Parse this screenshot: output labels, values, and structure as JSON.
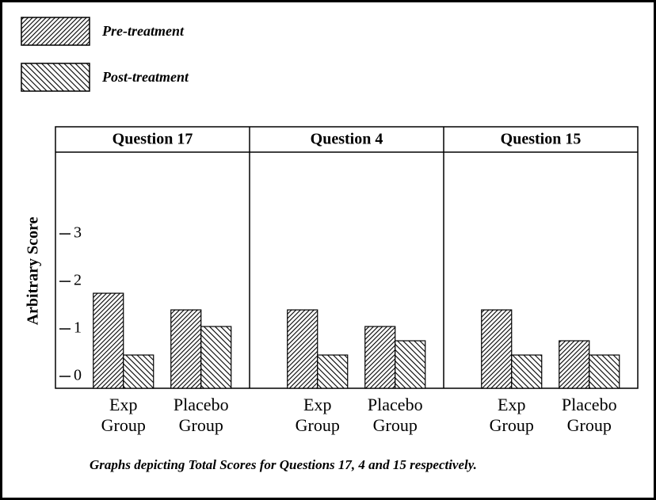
{
  "chart_data": {
    "type": "bar",
    "ylabel": "Arbitrary Score",
    "caption": "Graphs depicting Total Scores for Questions 17, 4 and 15 respectively.",
    "ylim": [
      -0.25,
      4.72
    ],
    "yticks": [
      0,
      1,
      2,
      3
    ],
    "series": [
      {
        "name": "Pre-treatment",
        "color": "#000000"
      },
      {
        "name": "Post-treatment",
        "color": "#000000"
      }
    ],
    "panels": [
      {
        "title": "Question 17",
        "categories": [
          "Exp Group",
          "Placebo Group"
        ],
        "values": [
          [
            1.75,
            0.45
          ],
          [
            1.4,
            1.05
          ]
        ]
      },
      {
        "title": "Question 4",
        "categories": [
          "Exp Group",
          "Placebo Group"
        ],
        "values": [
          [
            1.4,
            0.45
          ],
          [
            1.05,
            0.75
          ]
        ]
      },
      {
        "title": "Question 15",
        "categories": [
          "Exp Group",
          "Placebo Group"
        ],
        "values": [
          [
            1.4,
            0.45
          ],
          [
            0.75,
            0.45
          ]
        ]
      }
    ]
  }
}
